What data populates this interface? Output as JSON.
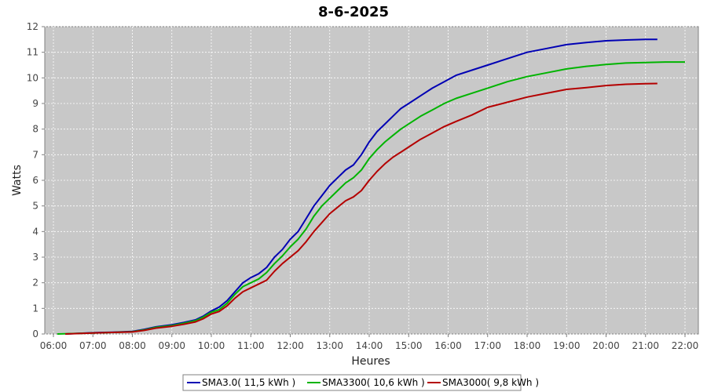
{
  "chart_data": {
    "type": "line",
    "title": "8-6-2025",
    "xlabel": "Heures",
    "ylabel": "Watts",
    "x_ticks": [
      "06:00",
      "07:00",
      "08:00",
      "09:00",
      "10:00",
      "11:00",
      "12:00",
      "13:00",
      "14:00",
      "15:00",
      "16:00",
      "17:00",
      "18:00",
      "19:00",
      "20:00",
      "21:00",
      "22:00"
    ],
    "xlim": [
      6.0,
      22.0
    ],
    "ylim": [
      0,
      12
    ],
    "y_ticks": [
      0,
      1,
      2,
      3,
      4,
      5,
      6,
      7,
      8,
      9,
      10,
      11,
      12
    ],
    "grid": true,
    "legend_position": "bottom",
    "plot_background": "#c8c8c8",
    "series": [
      {
        "name": "SMA3.0( 11,5 kWh )",
        "color": "#0000b4",
        "x": [
          6.3,
          7.0,
          7.5,
          8.0,
          8.3,
          8.6,
          9.0,
          9.3,
          9.6,
          9.8,
          10.0,
          10.2,
          10.4,
          10.6,
          10.8,
          11.0,
          11.2,
          11.4,
          11.6,
          11.8,
          12.0,
          12.2,
          12.4,
          12.6,
          12.8,
          13.0,
          13.2,
          13.4,
          13.6,
          13.8,
          14.0,
          14.2,
          14.4,
          14.6,
          14.8,
          15.0,
          15.3,
          15.6,
          15.9,
          16.2,
          16.6,
          17.0,
          17.5,
          18.0,
          18.5,
          19.0,
          19.5,
          20.0,
          20.5,
          21.0,
          21.3
        ],
        "y": [
          0.0,
          0.05,
          0.07,
          0.1,
          0.18,
          0.28,
          0.36,
          0.45,
          0.55,
          0.7,
          0.9,
          1.05,
          1.3,
          1.65,
          2.0,
          2.2,
          2.35,
          2.6,
          3.0,
          3.3,
          3.7,
          4.0,
          4.5,
          5.0,
          5.4,
          5.8,
          6.1,
          6.4,
          6.6,
          7.0,
          7.5,
          7.9,
          8.2,
          8.5,
          8.8,
          9.0,
          9.3,
          9.6,
          9.85,
          10.1,
          10.3,
          10.5,
          10.75,
          11.0,
          11.15,
          11.3,
          11.38,
          11.45,
          11.48,
          11.5,
          11.5
        ]
      },
      {
        "name": "SMA3300( 10,6 kWh )",
        "color": "#00b400",
        "x": [
          6.1,
          7.0,
          7.5,
          8.0,
          8.3,
          8.6,
          9.0,
          9.3,
          9.6,
          9.8,
          10.0,
          10.2,
          10.4,
          10.6,
          10.8,
          11.0,
          11.2,
          11.4,
          11.6,
          11.8,
          12.0,
          12.2,
          12.4,
          12.6,
          12.8,
          13.0,
          13.2,
          13.4,
          13.6,
          13.8,
          14.0,
          14.2,
          14.4,
          14.6,
          14.8,
          15.0,
          15.3,
          15.6,
          15.9,
          16.2,
          16.6,
          17.0,
          17.5,
          18.0,
          18.5,
          19.0,
          19.5,
          20.0,
          20.5,
          21.0,
          21.5,
          22.0
        ],
        "y": [
          0.0,
          0.04,
          0.06,
          0.09,
          0.16,
          0.26,
          0.33,
          0.42,
          0.52,
          0.66,
          0.85,
          0.95,
          1.2,
          1.55,
          1.85,
          2.0,
          2.15,
          2.4,
          2.75,
          3.05,
          3.4,
          3.7,
          4.1,
          4.6,
          5.0,
          5.3,
          5.6,
          5.9,
          6.1,
          6.4,
          6.85,
          7.2,
          7.5,
          7.75,
          8.0,
          8.2,
          8.5,
          8.75,
          9.0,
          9.2,
          9.4,
          9.6,
          9.85,
          10.05,
          10.2,
          10.35,
          10.45,
          10.52,
          10.58,
          10.6,
          10.62,
          10.62
        ]
      },
      {
        "name": "SMA3000( 9,8 kWh )",
        "color": "#b40000",
        "x": [
          6.3,
          7.0,
          7.5,
          8.0,
          8.3,
          8.6,
          9.0,
          9.3,
          9.6,
          9.8,
          10.0,
          10.2,
          10.4,
          10.6,
          10.8,
          11.0,
          11.2,
          11.4,
          11.6,
          11.8,
          12.0,
          12.2,
          12.4,
          12.6,
          12.8,
          13.0,
          13.2,
          13.4,
          13.6,
          13.8,
          14.0,
          14.2,
          14.4,
          14.6,
          14.8,
          15.0,
          15.3,
          15.6,
          15.9,
          16.2,
          16.6,
          17.0,
          17.5,
          18.0,
          18.5,
          19.0,
          19.5,
          20.0,
          20.5,
          21.0,
          21.3
        ],
        "y": [
          0.0,
          0.04,
          0.06,
          0.08,
          0.14,
          0.23,
          0.3,
          0.38,
          0.47,
          0.6,
          0.78,
          0.88,
          1.1,
          1.4,
          1.65,
          1.8,
          1.95,
          2.1,
          2.45,
          2.75,
          3.0,
          3.25,
          3.6,
          4.0,
          4.35,
          4.7,
          4.95,
          5.2,
          5.35,
          5.6,
          6.0,
          6.35,
          6.65,
          6.9,
          7.1,
          7.3,
          7.6,
          7.85,
          8.1,
          8.3,
          8.55,
          8.85,
          9.05,
          9.25,
          9.4,
          9.55,
          9.62,
          9.7,
          9.75,
          9.77,
          9.78
        ]
      }
    ]
  }
}
